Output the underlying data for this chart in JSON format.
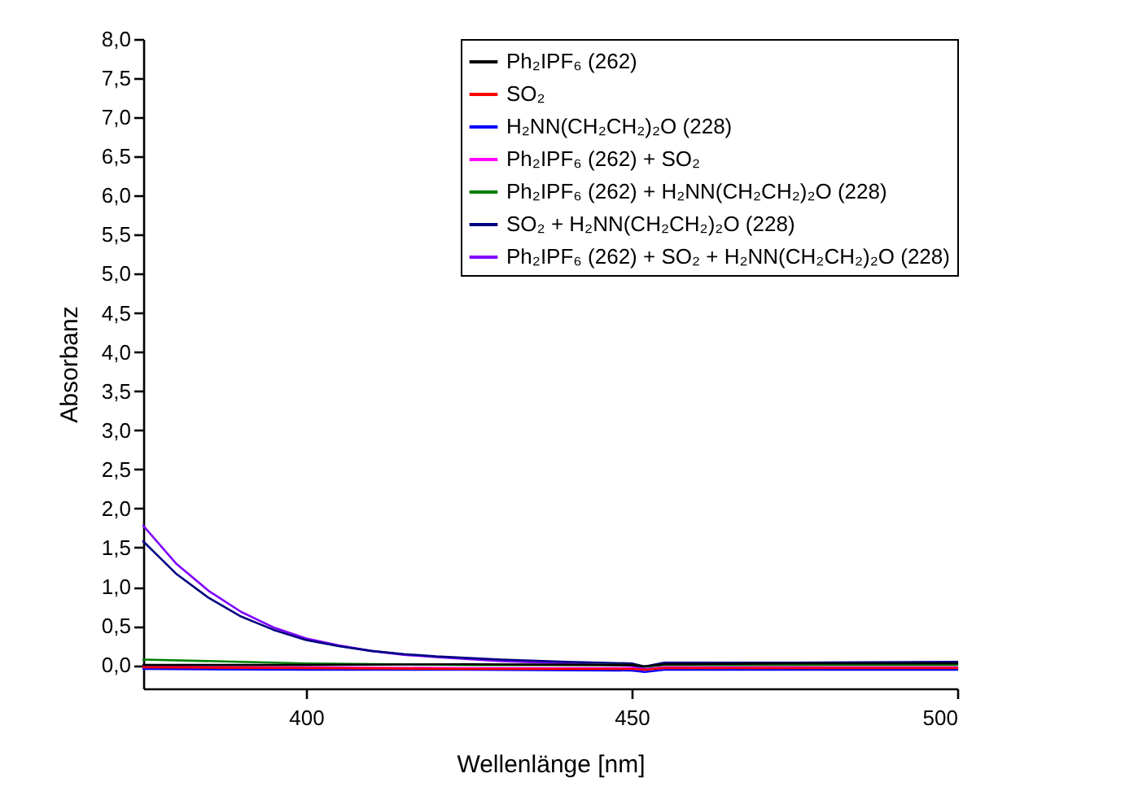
{
  "chart_data": {
    "type": "line",
    "xlabel": "Wellenlänge [nm]",
    "ylabel": "Absorbanz",
    "xlim": [
      375,
      500
    ],
    "ylim": [
      -0.3,
      8.0
    ],
    "xticks": [
      400,
      450,
      500
    ],
    "yticks": [
      {
        "value": 0,
        "label": "0,0"
      },
      {
        "value": 0.5,
        "label": "0,5"
      },
      {
        "value": 1,
        "label": "1,0"
      },
      {
        "value": 1.5,
        "label": "1,5"
      },
      {
        "value": 2,
        "label": "2,0"
      },
      {
        "value": 2.5,
        "label": "2,5"
      },
      {
        "value": 3,
        "label": "3,0"
      },
      {
        "value": 3.5,
        "label": "3,5"
      },
      {
        "value": 4,
        "label": "4,0"
      },
      {
        "value": 4.5,
        "label": "4,5"
      },
      {
        "value": 5,
        "label": "5,0"
      },
      {
        "value": 5.5,
        "label": "5,5"
      },
      {
        "value": 6,
        "label": "6,0"
      },
      {
        "value": 6.5,
        "label": "6,5"
      },
      {
        "value": 7,
        "label": "7,0"
      },
      {
        "value": 7.5,
        "label": "7,5"
      },
      {
        "value": 8,
        "label": "8,0"
      }
    ],
    "legend": "top right",
    "line_style": "solid",
    "series": [
      {
        "name": "Ph₂IPF₆ (262)",
        "color": "#000000",
        "x": [
          375,
          400,
          425,
          450,
          452,
          455,
          475,
          500
        ],
        "values": [
          0.0,
          0.0,
          0.01,
          0.0,
          -0.02,
          0.01,
          0.02,
          0.02
        ]
      },
      {
        "name": "SO₂",
        "color": "#ff0000",
        "x": [
          375,
          400,
          425,
          450,
          452,
          455,
          475,
          500
        ],
        "values": [
          -0.03,
          -0.04,
          -0.05,
          -0.05,
          -0.06,
          -0.04,
          -0.04,
          -0.04
        ]
      },
      {
        "name": "H₂NN(CH₂CH₂)₂O (228)",
        "color": "#0000ff",
        "x": [
          375,
          400,
          425,
          450,
          452,
          455,
          475,
          500
        ],
        "values": [
          -0.05,
          -0.06,
          -0.06,
          -0.07,
          -0.09,
          -0.06,
          -0.06,
          -0.06
        ]
      },
      {
        "name": "Ph₂IPF₆ (262) + SO₂",
        "color": "#ff00ff",
        "x": [
          375,
          400,
          425,
          450,
          452,
          455,
          475,
          500
        ],
        "values": [
          -0.02,
          -0.03,
          -0.04,
          -0.04,
          -0.06,
          -0.03,
          -0.03,
          -0.03
        ]
      },
      {
        "name": "Ph₂IPF₆ (262) + H₂NN(CH₂CH₂)₂O (228)",
        "color": "#008000",
        "x": [
          375,
          400,
          425,
          450,
          452,
          455,
          475,
          500
        ],
        "values": [
          0.07,
          0.02,
          0.0,
          0.0,
          -0.02,
          0.0,
          0.0,
          0.0
        ]
      },
      {
        "name": "SO₂ + H₂NN(CH₂CH₂)₂O (228)",
        "color": "#000080",
        "x": [
          375,
          380,
          385,
          390,
          395,
          400,
          405,
          410,
          415,
          420,
          430,
          440,
          450,
          452,
          455,
          475,
          500
        ],
        "values": [
          1.58,
          1.17,
          0.86,
          0.62,
          0.45,
          0.32,
          0.24,
          0.18,
          0.14,
          0.11,
          0.07,
          0.04,
          0.02,
          -0.02,
          0.03,
          0.03,
          0.04
        ]
      },
      {
        "name": "Ph₂IPF₆ (262) + SO₂ + H₂NN(CH₂CH₂)₂O (228)",
        "color": "#8000ff",
        "x": [
          375,
          380,
          385,
          390,
          395,
          400,
          405,
          410,
          415,
          420,
          430,
          440,
          450,
          452,
          455,
          475,
          500
        ],
        "values": [
          1.78,
          1.3,
          0.95,
          0.68,
          0.48,
          0.34,
          0.25,
          0.18,
          0.13,
          0.1,
          0.05,
          0.02,
          -0.01,
          -0.05,
          -0.03,
          -0.03,
          -0.04
        ]
      }
    ]
  }
}
